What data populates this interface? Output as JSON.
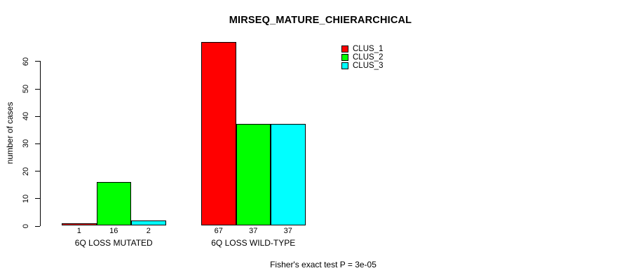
{
  "chart_data": {
    "type": "bar",
    "title": "MIRSEQ_MATURE_CHIERARCHICAL",
    "ylabel": "number of cases",
    "xlabel": "",
    "categories": [
      "6Q LOSS MUTATED",
      "6Q LOSS WILD-TYPE"
    ],
    "series": [
      {
        "name": "CLUS_1",
        "color": "#ff0000",
        "values": [
          1,
          67
        ]
      },
      {
        "name": "CLUS_2",
        "color": "#00ff00",
        "values": [
          16,
          37
        ]
      },
      {
        "name": "CLUS_3",
        "color": "#00ffff",
        "values": [
          2,
          37
        ]
      }
    ],
    "bar_value_labels": [
      [
        1,
        16,
        2
      ],
      [
        67,
        37,
        37
      ]
    ],
    "y_ticks": [
      0,
      10,
      20,
      30,
      40,
      50,
      60
    ],
    "ylim": [
      0,
      67
    ],
    "grid": false,
    "legend_position": "top-right",
    "legend_border": false,
    "axis_color": "#000000",
    "background_color": "#ffffff",
    "caption": "Fisher's exact test P = 3e-05"
  }
}
